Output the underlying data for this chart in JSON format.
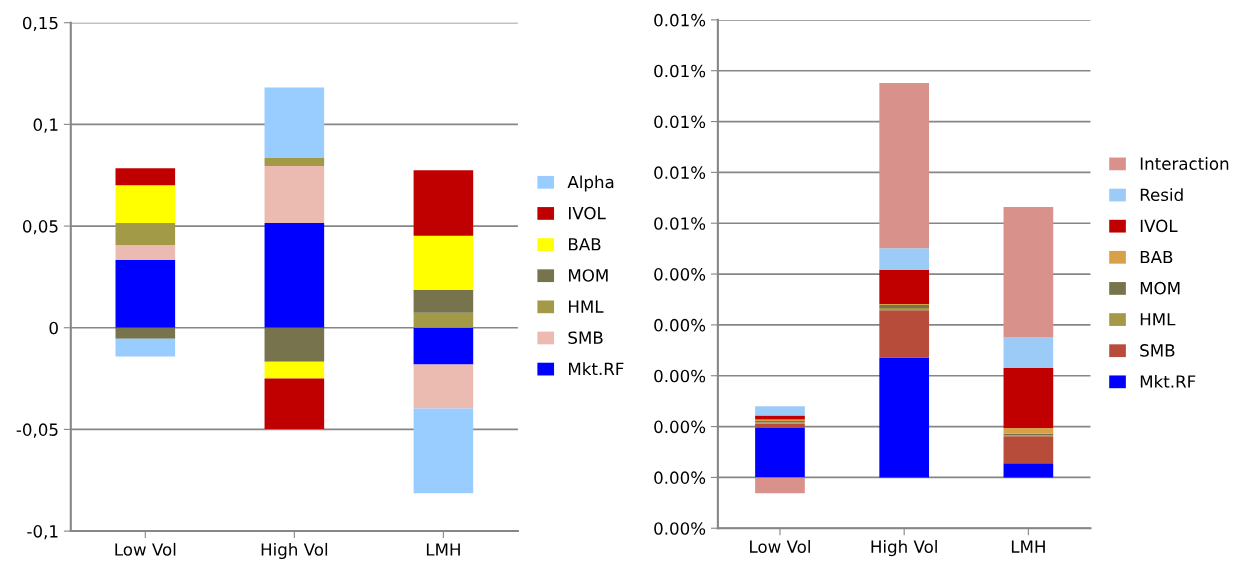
{
  "chart_data": [
    {
      "type": "bar",
      "stacked": true,
      "categories": [
        "Low Vol",
        "High Vol",
        "LMH"
      ],
      "ylim": [
        -0.1,
        0.15
      ],
      "yticks": [
        {
          "value": -0.1,
          "label": "-0,1"
        },
        {
          "value": -0.05,
          "label": "-0,05"
        },
        0,
        {
          "value": 0.05,
          "label": "0,05"
        },
        {
          "value": 0.1,
          "label": "0,1"
        },
        {
          "value": 0.15,
          "label": "0,15"
        }
      ],
      "grid": "y",
      "legend": "right",
      "series": [
        {
          "name": "Mkt.RF",
          "color": "#0000ff",
          "values": [
            0.0333,
            0.0515,
            -0.0181
          ]
        },
        {
          "name": "SMB",
          "color": "#ebbab0",
          "values": [
            0.0074,
            0.028,
            -0.0216
          ]
        },
        {
          "name": "HML",
          "color": "#a39a48",
          "values": [
            0.0108,
            0.004,
            0.0074
          ]
        },
        {
          "name": "MOM",
          "color": "#77734d",
          "values": [
            -0.0054,
            -0.0167,
            0.0113
          ]
        },
        {
          "name": "BAB",
          "color": "#ffff00",
          "values": [
            0.0186,
            -0.0083,
            0.0265
          ]
        },
        {
          "name": "IVOL",
          "color": "#c00000",
          "values": [
            0.0083,
            -0.0248,
            0.0323
          ]
        },
        {
          "name": "Alpha",
          "color": "#99ccff",
          "values": [
            -0.0088,
            0.0347,
            -0.0417
          ]
        }
      ]
    },
    {
      "type": "bar",
      "stacked": true,
      "categories": [
        "Low Vol",
        "High Vol",
        "LMH"
      ],
      "ylim": [
        -0.001,
        0.009
      ],
      "yticks": [
        {
          "value": -0.001,
          "label": "0.00%"
        },
        {
          "value": 0,
          "label": "0.00%"
        },
        {
          "value": 0.001,
          "label": "0.00%"
        },
        {
          "value": 0.002,
          "label": "0.00%"
        },
        {
          "value": 0.003,
          "label": "0.00%"
        },
        {
          "value": 0.004,
          "label": "0.00%"
        },
        {
          "value": 0.005,
          "label": "0.01%"
        },
        {
          "value": 0.006,
          "label": "0.01%"
        },
        {
          "value": 0.007,
          "label": "0.01%"
        },
        {
          "value": 0.008,
          "label": "0.01%"
        },
        {
          "value": 0.009,
          "label": "0.01%"
        }
      ],
      "grid": "y",
      "legend": "right",
      "series": [
        {
          "name": "Mkt.RF",
          "color": "#0000ff",
          "values": [
            0.00098,
            0.00236,
            0.00028
          ]
        },
        {
          "name": "SMB",
          "color": "#b84c3a",
          "values": [
            8e-05,
            0.00093,
            0.00053
          ]
        },
        {
          "name": "HML",
          "color": "#a39a48",
          "values": [
            2e-05,
            4e-05,
            2e-05
          ]
        },
        {
          "name": "MOM",
          "color": "#77734d",
          "values": [
            3e-05,
            6e-05,
            3e-05
          ]
        },
        {
          "name": "BAB",
          "color": "#d9a04a",
          "values": [
            3e-05,
            2e-05,
            0.00011
          ]
        },
        {
          "name": "IVOL",
          "color": "#c00000",
          "values": [
            8e-05,
            0.00067,
            0.00118
          ]
        },
        {
          "name": "Resid",
          "color": "#9ccbf8",
          "values": [
            0.00018,
            0.00043,
            0.00061
          ]
        },
        {
          "name": "Interaction",
          "color": "#d9928b",
          "values": [
            -0.00031,
            0.00325,
            0.00256
          ]
        }
      ]
    }
  ]
}
